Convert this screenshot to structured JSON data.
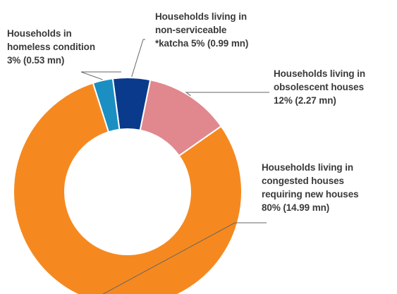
{
  "chart_data": {
    "type": "pie",
    "variant": "donut",
    "title": "",
    "slices": [
      {
        "key": "katcha",
        "lines": [
          "Households living in",
          "non-serviceable",
          "*katcha  5% (0.99 mn)"
        ],
        "percent": 5,
        "value_mn": 0.99,
        "color": "#0a3a8c"
      },
      {
        "key": "obsolescent",
        "lines": [
          "Households living in",
          "obsolescent houses",
          "12% (2.27 mn)"
        ],
        "percent": 12,
        "value_mn": 2.27,
        "color": "#e0888e"
      },
      {
        "key": "congested",
        "lines": [
          "Households living in",
          "congested houses",
          "requiring new houses",
          "80% (14.99 mn)"
        ],
        "percent": 80,
        "value_mn": 14.99,
        "color": "#f5891f"
      },
      {
        "key": "homeless",
        "lines": [
          "Households in",
          "homeless condition",
          "3% (0.53 mn)"
        ],
        "percent": 3,
        "value_mn": 0.53,
        "color": "#1b8fc2"
      }
    ]
  }
}
